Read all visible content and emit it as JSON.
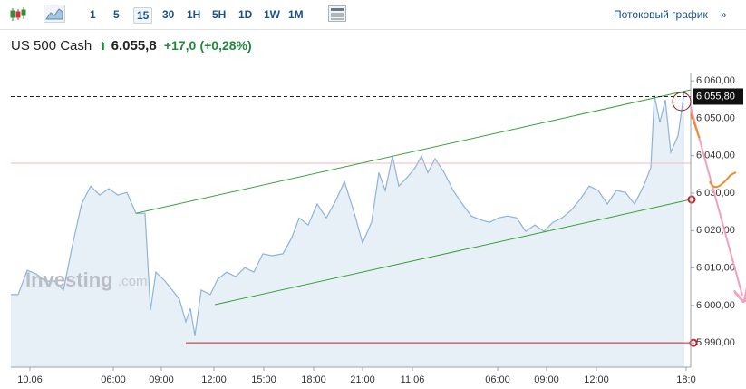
{
  "toolbar": {
    "intervals": [
      "1",
      "5",
      "15",
      "30",
      "1H",
      "5H",
      "1D",
      "1W",
      "1M"
    ],
    "active": 2,
    "stream_link": "Потоковый график",
    "stream_arrow": "»"
  },
  "header": {
    "name": "US 500 Cash",
    "price": "6.055,8",
    "change": "+17,0",
    "change_pct": "(+0,28%)"
  },
  "chart_data": {
    "type": "area",
    "watermark": "Investing",
    "watermark_suffix": ".com",
    "x": [
      0,
      1.6,
      3.6,
      5.6,
      7.6,
      9.6,
      11.6,
      13.6,
      15.6,
      17.6,
      19.6,
      21.6,
      23.6,
      25.6,
      27.6,
      29.6,
      30.8,
      32,
      34,
      35.6,
      37.2,
      38.6,
      39.6,
      40.6,
      42,
      44,
      45.6,
      47.6,
      49.6,
      51.6,
      53.6,
      55.6,
      57.6,
      60,
      62,
      63.6,
      65.6,
      67.6,
      69.6,
      71.6,
      73.6,
      75.6,
      77.6,
      79.6,
      81.2,
      82.6,
      84.2,
      85.6,
      87.6,
      89.2,
      90.6,
      92,
      93.6,
      95.6,
      97.6,
      99.6,
      101.6,
      103.6,
      105.6,
      107.6,
      109.6,
      111.6,
      113.6,
      115.6,
      117.6,
      119.6,
      121.6,
      123.6,
      125.6,
      127.6,
      129.6,
      131.6,
      133.6,
      135.6,
      137.6,
      139.6,
      141.2,
      142,
      143.2,
      144.4,
      145.6,
      147.2,
      148.6
    ],
    "series": [
      {
        "name": "US 500 Cash",
        "color": "#8fb3d9",
        "fill": "#e7eff7",
        "values": [
          6002.9,
          6002.9,
          6009.4,
          6008.4,
          6006.5,
          6006.5,
          6004.1,
          6016.2,
          6027.1,
          6031.9,
          6029.5,
          6031.2,
          6029.5,
          6030.2,
          6024.6,
          6024.6,
          5998.7,
          6008.9,
          6006.5,
          6004.1,
          6001.6,
          5995.6,
          5999.2,
          5992.0,
          6004.1,
          6002.9,
          6007.0,
          6008.9,
          6007.7,
          6010.1,
          6008.9,
          6013.8,
          6013.3,
          6013.8,
          6018.1,
          6023.4,
          6021.5,
          6027.1,
          6023.4,
          6027.8,
          6033.1,
          6025.4,
          6016.7,
          6022.3,
          6035.5,
          6030.7,
          6039.9,
          6031.9,
          6034.4,
          6036.8,
          6039.9,
          6035.5,
          6039.2,
          6035.5,
          6030.7,
          6027.1,
          6023.9,
          6022.9,
          6022.2,
          6023.4,
          6023.9,
          6023.4,
          6019.8,
          6021.5,
          6019.8,
          6022.2,
          6023.4,
          6025.4,
          6028.3,
          6031.9,
          6030.7,
          6027.1,
          6030.7,
          6030.2,
          6027.1,
          6031.9,
          6036.8,
          6056.1,
          6048.9,
          6054.9,
          6040.9,
          6045.3,
          6057.3
        ]
      }
    ],
    "xlim": [
      0,
      150
    ],
    "xticks": [
      {
        "value": 4.2,
        "label": "10.06"
      },
      {
        "value": 22.6,
        "label": "06:00"
      },
      {
        "value": 33.2,
        "label": "09:00"
      },
      {
        "value": 44.8,
        "label": "12:00"
      },
      {
        "value": 55.8,
        "label": "15:00"
      },
      {
        "value": 66.8,
        "label": "18:00"
      },
      {
        "value": 77.6,
        "label": "21:00"
      },
      {
        "value": 88.6,
        "label": "11.06"
      },
      {
        "value": 107.4,
        "label": "06:00"
      },
      {
        "value": 118.2,
        "label": "09:00"
      },
      {
        "value": 129.2,
        "label": "12:00"
      },
      {
        "value": 149,
        "label": "18:0"
      }
    ],
    "ylim": [
      5983.5,
      6061
    ],
    "yticks": [
      {
        "value": 5990,
        "label": "5 990,00"
      },
      {
        "value": 6000,
        "label": "6 000,00"
      },
      {
        "value": 6010,
        "label": "6 010,00"
      },
      {
        "value": 6020,
        "label": "6 020,00"
      },
      {
        "value": 6030,
        "label": "6 030,00"
      },
      {
        "value": 6040,
        "label": "6 040,00"
      },
      {
        "value": 6050,
        "label": "6 050,00"
      },
      {
        "value": 6060,
        "label": "6 060,00"
      }
    ],
    "last_price": {
      "value": 6055.8,
      "label": "6 055,80"
    },
    "levels": [
      {
        "value": 6038,
        "color": "#f2b8bf",
        "from": 0
      },
      {
        "value": 5990,
        "color": "#c8202b",
        "from": 38.6
      }
    ],
    "trendlines": [
      {
        "x": [
          27.6,
          150
        ],
        "y": [
          6024.6,
          6057.6
        ],
        "color": "#3aa13a"
      },
      {
        "x": [
          45,
          150
        ],
        "y": [
          6000.2,
          6028.3
        ],
        "color": "#3aa13a"
      }
    ]
  }
}
